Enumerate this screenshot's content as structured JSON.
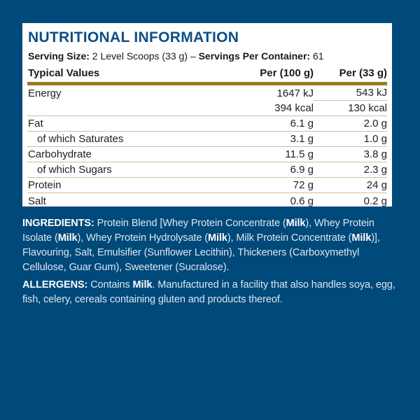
{
  "header": {
    "title": "NUTRITIONAL INFORMATION",
    "serving_size_label": "Serving Size:",
    "serving_size_value": " 2 Level Scoops (33 g) ",
    "dash": " – ",
    "servings_label": "Servings Per Container:",
    "servings_value": " 61"
  },
  "table": {
    "columns": [
      "Typical Values",
      "Per (100 g)",
      "Per (33 g)"
    ],
    "rows": [
      {
        "label": "Energy",
        "per_100g": "1647 kJ",
        "per_33g": "543 kJ"
      },
      {
        "label": "",
        "per_100g": "394 kcal",
        "per_33g": "130 kcal"
      },
      {
        "label": "Fat",
        "per_100g": "6.1 g",
        "per_33g": "2.0 g"
      },
      {
        "label": "of which Saturates",
        "per_100g": "3.1 g",
        "per_33g": "1.0 g"
      },
      {
        "label": "Carbohydrate",
        "per_100g": "11.5 g",
        "per_33g": "3.8 g"
      },
      {
        "label": "of which Sugars",
        "per_100g": "6.9 g",
        "per_33g": "2.3 g"
      },
      {
        "label": "Protein",
        "per_100g": "72 g",
        "per_33g": "24 g"
      },
      {
        "label": "Salt",
        "per_100g": "0.6 g",
        "per_33g": "0.2 g"
      }
    ]
  },
  "ingredients": {
    "segments": [
      {
        "text": "INGREDIENTS: ",
        "bold": true
      },
      {
        "text": "Protein Blend [Whey Protein Concentrate (",
        "bold": false
      },
      {
        "text": "Milk",
        "bold": true
      },
      {
        "text": "), Whey Protein Isolate (",
        "bold": false
      },
      {
        "text": "Milk",
        "bold": true
      },
      {
        "text": "), Whey Protein Hydrolysate (",
        "bold": false
      },
      {
        "text": "Milk",
        "bold": true
      },
      {
        "text": "), Milk Protein Concentrate (",
        "bold": false
      },
      {
        "text": "Milk",
        "bold": true
      },
      {
        "text": ")], Flavouring, Salt, Emulsifier (Sunflower Lecithin), Thickeners (Carboxymethyl Cellulose, Guar Gum), Sweetener (Sucralose).",
        "bold": false
      }
    ]
  },
  "allergens": {
    "segments": [
      {
        "text": "ALLERGENS: ",
        "bold": true
      },
      {
        "text": "Contains ",
        "bold": false
      },
      {
        "text": "Milk",
        "bold": true
      },
      {
        "text": ". Manufactured in a facility that also handles soya, egg, fish, celery, cereals containing gluten and products thereof.",
        "bold": false
      }
    ]
  },
  "colors": {
    "background": "#00497B",
    "panel": "#FFFFFF",
    "title": "#0F4D85",
    "rule_thick": "#9D7B28",
    "rule_thin": "#CCC09A",
    "table_text": "#1E1E1E",
    "body_text": "#DCE7EF",
    "body_bold_text": "#FFFFFF"
  }
}
